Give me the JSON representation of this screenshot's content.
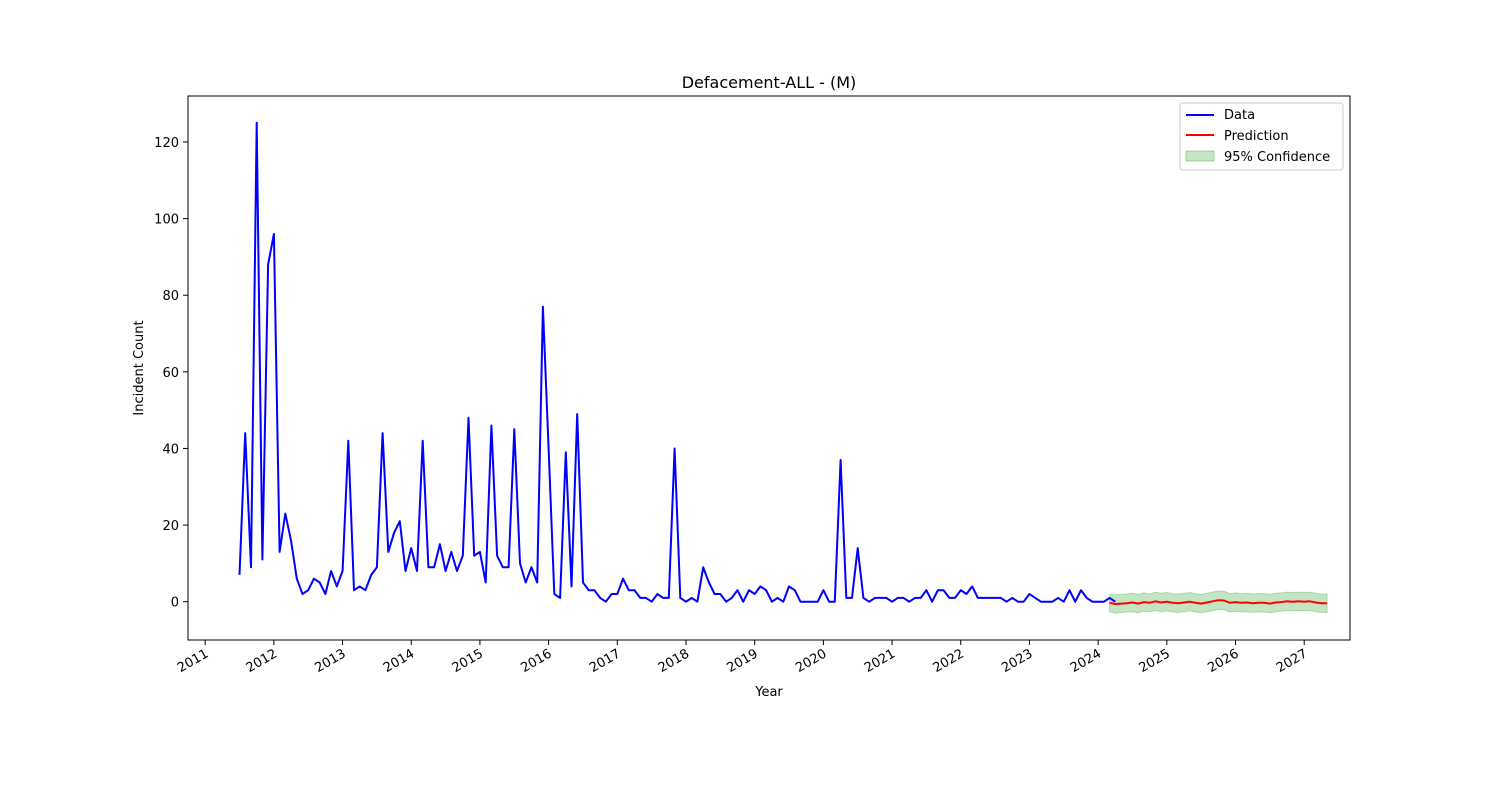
{
  "chart_data": {
    "type": "line",
    "title": "Defacement-ALL - (M)",
    "xlabel": "Year",
    "ylabel": "Incident Count",
    "xlim": [
      "2010-10",
      "2027-09"
    ],
    "ylim": [
      -10,
      132
    ],
    "x_ticks": [
      "2011",
      "2012",
      "2013",
      "2014",
      "2015",
      "2016",
      "2017",
      "2018",
      "2019",
      "2020",
      "2021",
      "2022",
      "2023",
      "2024",
      "2025",
      "2026",
      "2027"
    ],
    "y_ticks": [
      0,
      20,
      40,
      60,
      80,
      100,
      120
    ],
    "grid": false,
    "legend_position": "top-right",
    "colors": {
      "data": "#0000ff",
      "prediction": "#ff0000",
      "confidence": "#2ca02c"
    },
    "legend": [
      "Data",
      "Prediction",
      "95% Confidence"
    ],
    "series": [
      {
        "name": "Data",
        "start": "2011-07",
        "values": [
          7,
          44,
          9,
          125,
          11,
          88,
          96,
          13,
          23,
          16,
          6,
          2,
          3,
          6,
          5,
          2,
          8,
          4,
          8,
          42,
          3,
          4,
          3,
          7,
          9,
          44,
          13,
          18,
          21,
          8,
          14,
          8,
          42,
          9,
          9,
          15,
          8,
          13,
          8,
          12,
          48,
          12,
          13,
          5,
          46,
          12,
          9,
          9,
          45,
          10,
          5,
          9,
          5,
          77,
          40,
          2,
          1,
          39,
          4,
          49,
          5,
          3,
          3,
          1,
          0,
          2,
          2,
          6,
          3,
          3,
          1,
          1,
          0,
          2,
          1,
          1,
          40,
          1,
          0,
          1,
          0,
          9,
          5,
          2,
          2,
          0,
          1,
          3,
          0,
          3,
          2,
          4,
          3,
          0,
          1,
          0,
          4,
          3,
          0,
          0,
          0,
          0,
          3,
          0,
          0,
          37,
          1,
          1,
          14,
          1,
          0,
          1,
          1,
          1,
          0,
          1,
          1,
          0,
          1,
          1,
          3,
          0,
          3,
          3,
          1,
          1,
          3,
          2,
          4,
          1,
          1,
          1,
          1,
          1,
          0,
          1,
          0,
          0,
          2,
          1,
          0,
          0,
          0,
          1,
          0,
          3,
          0,
          3,
          1,
          0,
          0,
          0,
          1,
          0
        ]
      },
      {
        "name": "Prediction",
        "start": "2024-03",
        "values": [
          -0.3,
          -0.6,
          -0.5,
          -0.4,
          -0.2,
          -0.5,
          -0.1,
          -0.3,
          0.1,
          -0.2,
          0.0,
          -0.3,
          -0.4,
          -0.2,
          0.0,
          -0.3,
          -0.5,
          -0.2,
          0.1,
          0.4,
          0.3,
          -0.3,
          -0.1,
          -0.3,
          -0.2,
          -0.4,
          -0.3,
          -0.3,
          -0.5,
          -0.2,
          -0.1,
          0.1,
          0.0,
          0.1,
          0.0,
          0.1,
          -0.2,
          -0.4,
          -0.4
        ],
        "lower": [
          -2.6,
          -3.0,
          -2.8,
          -2.7,
          -2.6,
          -2.9,
          -2.5,
          -2.6,
          -2.3,
          -2.6,
          -2.4,
          -2.7,
          -2.8,
          -2.6,
          -2.4,
          -2.7,
          -2.9,
          -2.6,
          -2.3,
          -2.0,
          -2.1,
          -2.7,
          -2.5,
          -2.7,
          -2.6,
          -2.8,
          -2.7,
          -2.7,
          -2.9,
          -2.6,
          -2.5,
          -2.3,
          -2.4,
          -2.3,
          -2.4,
          -2.3,
          -2.6,
          -2.8,
          -2.8
        ],
        "upper": [
          2.0,
          1.8,
          1.9,
          2.0,
          2.2,
          1.9,
          2.3,
          2.0,
          2.5,
          2.2,
          2.4,
          2.1,
          2.0,
          2.2,
          2.4,
          2.1,
          1.9,
          2.2,
          2.5,
          2.8,
          2.7,
          2.1,
          2.3,
          2.1,
          2.2,
          2.0,
          2.1,
          2.1,
          1.9,
          2.2,
          2.3,
          2.5,
          2.4,
          2.5,
          2.4,
          2.5,
          2.2,
          2.0,
          2.0
        ]
      }
    ]
  }
}
